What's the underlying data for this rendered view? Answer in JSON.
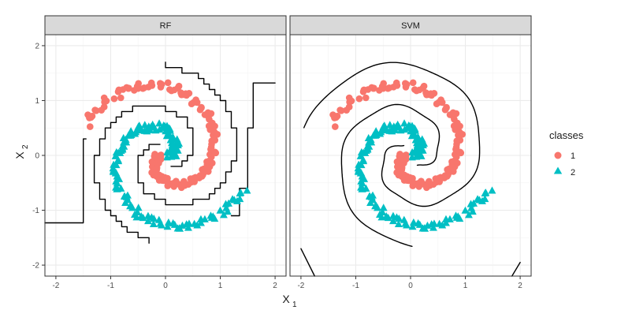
{
  "colors": {
    "class1": "#f8766d",
    "class2": "#00bfc4",
    "boundary": "#000000",
    "strip": "#d9d9d9"
  },
  "legend": {
    "title": "classes",
    "items": [
      {
        "label": "1",
        "shape": "circle",
        "color": "#f8766d"
      },
      {
        "label": "2",
        "shape": "triangle",
        "color": "#00bfc4"
      }
    ]
  },
  "chart_data": {
    "type": "scatter",
    "facets": [
      "RF",
      "SVM"
    ],
    "xlabel": "X",
    "xlabel_sub": "1",
    "ylabel": "X",
    "ylabel_sub": "2",
    "xlim": [
      -2.2,
      2.2
    ],
    "ylim": [
      -2.2,
      2.2
    ],
    "x_ticks": [
      -2,
      -1,
      0,
      1,
      2
    ],
    "y_ticks": [
      -2,
      -1,
      0,
      1,
      2
    ],
    "grid": true,
    "legend_position": "right",
    "series": [
      {
        "name": "1",
        "marker": "circle",
        "description": "inner spiral arm, spiral r = 0.08 + 0.25*t, t in [0, 5.9], offset +pi"
      },
      {
        "name": "2",
        "marker": "triangle",
        "description": "outer spiral arm, spiral r = 0.08 + 0.25*t, t in [0, 5.9], offset 0"
      }
    ],
    "decision_boundaries": {
      "RF": "blocky step-like contours following the spiral",
      "SVM": "smooth curved contours following the spiral"
    }
  }
}
